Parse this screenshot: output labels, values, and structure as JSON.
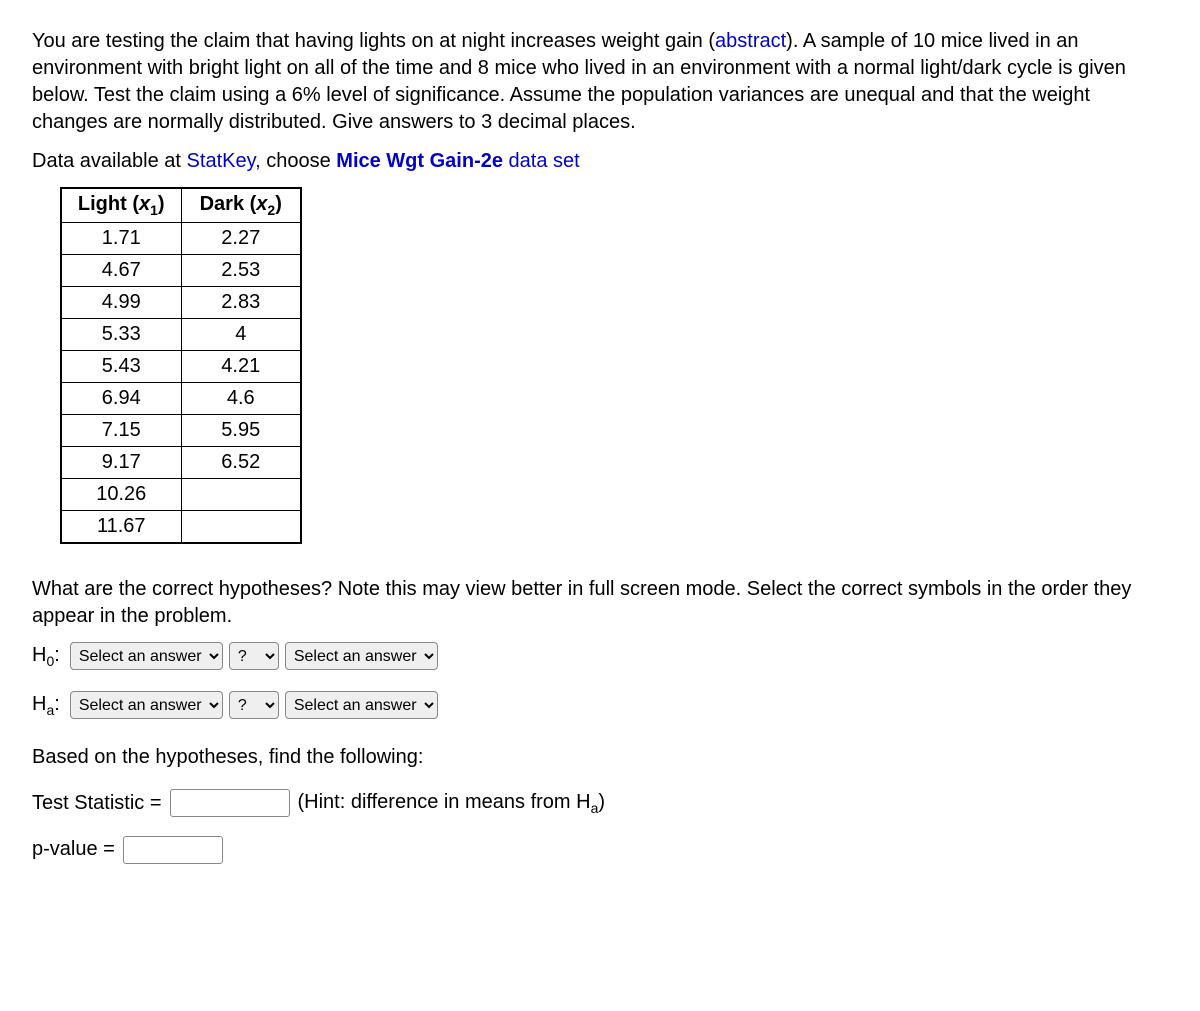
{
  "intro": {
    "part1": "You are testing the claim that having lights on at night increases weight gain (",
    "abstract_link": "abstract",
    "part2": "). A sample of 10 mice lived in an environment with bright light on all of the time and 8 mice who lived in an environment with a normal light/dark cycle is given below. Test the claim using a 6% level of significance. Assume the population variances are unequal and that the weight changes are normally distributed. Give answers to 3 decimal places."
  },
  "data_line": {
    "prefix": "Data available at ",
    "statkey": "StatKey,",
    "choose": " choose ",
    "dataset_bold": "Mice Wgt Gain-2e",
    "suffix": " data set"
  },
  "table": {
    "headers": {
      "light_label": "Light (",
      "light_var": "x",
      "light_sub": "1",
      "light_close": ")",
      "dark_label": "Dark (",
      "dark_var": "x",
      "dark_sub": "2",
      "dark_close": ")"
    },
    "rows": [
      {
        "light": "1.71",
        "dark": "2.27"
      },
      {
        "light": "4.67",
        "dark": "2.53"
      },
      {
        "light": "4.99",
        "dark": "2.83"
      },
      {
        "light": "5.33",
        "dark": "4"
      },
      {
        "light": "5.43",
        "dark": "4.21"
      },
      {
        "light": "6.94",
        "dark": "4.6"
      },
      {
        "light": "7.15",
        "dark": "5.95"
      },
      {
        "light": "9.17",
        "dark": "6.52"
      },
      {
        "light": "10.26",
        "dark": ""
      },
      {
        "light": "11.67",
        "dark": ""
      }
    ]
  },
  "q1": "What are the correct hypotheses? Note this may view better in full screen mode. Select the correct symbols in the order they appear in the problem.",
  "hypotheses": {
    "h0_prefix": "H",
    "h0_sub": "0",
    "ha_prefix": "H",
    "ha_sub": "a",
    "colon": ":",
    "select_placeholder": "Select an answer",
    "op_placeholder": "?"
  },
  "q2": "Based on the hypotheses, find the following:",
  "test_stat": {
    "label": "Test Statistic =",
    "hint_pre": "(Hint: difference in means from H",
    "hint_sub": "a",
    "hint_post": ")"
  },
  "pvalue": {
    "label": "p-value ="
  }
}
